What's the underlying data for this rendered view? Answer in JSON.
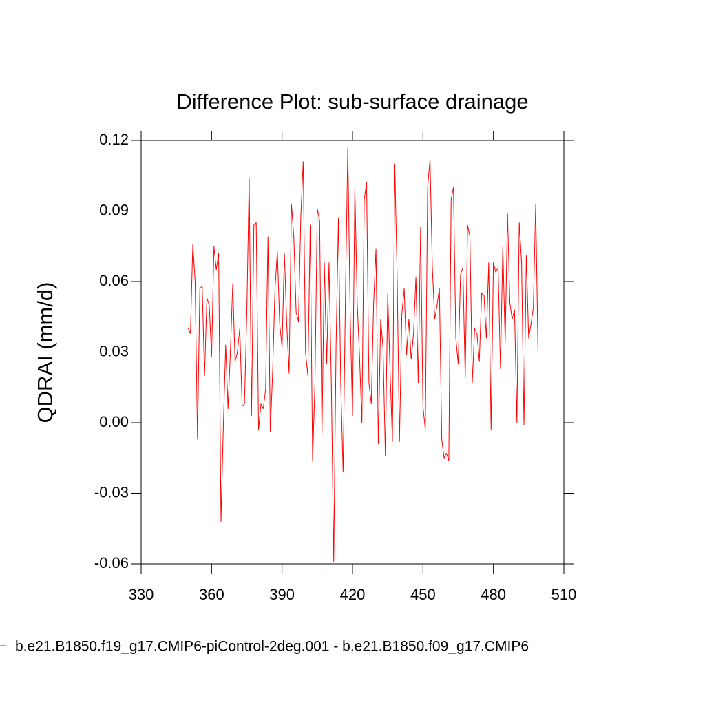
{
  "chart_data": {
    "type": "line",
    "title": "Difference Plot: sub-surface drainage",
    "y_label": "QDRAI  (mm/d)",
    "x": [
      350,
      351,
      352,
      353,
      354,
      355,
      356,
      357,
      358,
      359,
      360,
      361,
      362,
      363,
      364,
      365,
      366,
      367,
      368,
      369,
      370,
      371,
      372,
      373,
      374,
      375,
      376,
      377,
      378,
      379,
      380,
      381,
      382,
      383,
      384,
      385,
      386,
      387,
      388,
      389,
      390,
      391,
      392,
      393,
      394,
      395,
      396,
      397,
      398,
      399,
      400,
      401,
      402,
      403,
      404,
      405,
      406,
      407,
      408,
      409,
      410,
      411,
      412,
      413,
      414,
      415,
      416,
      417,
      418,
      419,
      420,
      421,
      422,
      423,
      424,
      425,
      426,
      427,
      428,
      429,
      430,
      431,
      432,
      433,
      434,
      435,
      436,
      437,
      438,
      439,
      440,
      441,
      442,
      443,
      444,
      445,
      446,
      447,
      448,
      449,
      450,
      451,
      452,
      453,
      454,
      455,
      456,
      457,
      458,
      459,
      460,
      461,
      462,
      463,
      464,
      465,
      466,
      467,
      468,
      469,
      470,
      471,
      472,
      473,
      474,
      475,
      476,
      477,
      478,
      479,
      480,
      481,
      482,
      483,
      484,
      485,
      486,
      487,
      488,
      489,
      490,
      491,
      492,
      493,
      494,
      495,
      496,
      497,
      498,
      499
    ],
    "series": [
      {
        "name": "b.e21.B1850.f19_g17.CMIP6-piControl-2deg.001 - b.e21.B1850.f09_g17.CMIP6",
        "color": "#ff0000",
        "values": [
          0.04,
          0.038,
          0.076,
          0.06,
          -0.007,
          0.057,
          0.058,
          0.02,
          0.053,
          0.05,
          0.028,
          0.075,
          0.065,
          0.072,
          -0.042,
          -0.002,
          0.033,
          0.006,
          0.03,
          0.059,
          0.026,
          0.03,
          0.04,
          0.007,
          0.008,
          0.047,
          0.104,
          0.003,
          0.084,
          0.085,
          -0.003,
          0.008,
          0.006,
          0.014,
          0.079,
          -0.004,
          0.022,
          0.057,
          0.073,
          0.042,
          0.032,
          0.072,
          0.042,
          0.021,
          0.093,
          0.079,
          0.047,
          0.043,
          0.088,
          0.111,
          0.03,
          0.02,
          0.084,
          -0.016,
          0.016,
          0.091,
          0.086,
          -0.005,
          0.068,
          0.025,
          0.068,
          0.016,
          -0.059,
          0.033,
          0.087,
          0.016,
          -0.021,
          0.054,
          0.117,
          0.047,
          0.003,
          0.1,
          0.051,
          0.028,
          0.0,
          0.095,
          0.102,
          0.017,
          0.008,
          0.051,
          0.074,
          -0.009,
          0.044,
          0.032,
          -0.014,
          0.055,
          0.022,
          -0.008,
          0.11,
          0.063,
          -0.008,
          0.046,
          0.057,
          0.029,
          0.044,
          0.027,
          0.038,
          0.062,
          0.017,
          0.083,
          0.007,
          -0.003,
          0.1,
          0.112,
          0.066,
          0.044,
          0.05,
          0.057,
          -0.007,
          -0.015,
          -0.013,
          -0.016,
          0.095,
          0.1,
          0.036,
          0.025,
          0.063,
          0.066,
          0.019,
          0.084,
          0.079,
          0.017,
          0.04,
          0.038,
          0.026,
          0.055,
          0.054,
          0.036,
          0.068,
          -0.003,
          0.068,
          0.064,
          0.066,
          0.023,
          0.075,
          0.034,
          0.089,
          0.051,
          0.044,
          0.048,
          0.0,
          0.085,
          0.068,
          -0.001,
          0.071,
          0.036,
          0.042,
          0.049,
          0.093,
          0.029
        ]
      }
    ],
    "xlim": [
      330,
      510
    ],
    "xticks": [
      330,
      360,
      390,
      420,
      450,
      480,
      510
    ],
    "ylim": [
      -0.06,
      0.12
    ],
    "yticks": [
      -0.06,
      -0.03,
      {
        "value": 0,
        "label": "0.00"
      },
      0.03,
      0.06,
      0.09,
      0.12
    ]
  }
}
